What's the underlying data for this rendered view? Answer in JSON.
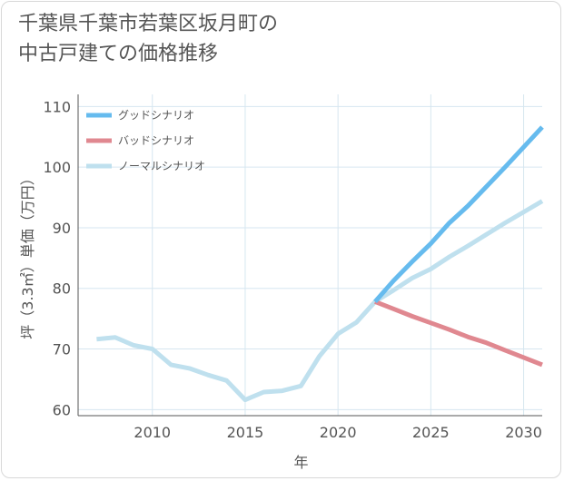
{
  "chart_data": {
    "type": "line",
    "title_line1": "千葉県千葉市若葉区坂月町の",
    "title_line2": "中古戸建ての価格推移",
    "xlabel": "年",
    "ylabel": "坪（3.3㎡）単価（万円）",
    "xlim": [
      2006,
      2031
    ],
    "ylim": [
      59,
      112
    ],
    "x_ticks": [
      2010,
      2015,
      2020,
      2025,
      2030
    ],
    "y_ticks": [
      60,
      70,
      80,
      90,
      100,
      110
    ],
    "grid": true,
    "legend_position": "top-left",
    "colors": {
      "good": "#66bbee",
      "bad": "#e08890",
      "normal": "#bfe0ee",
      "grid": "#d6e6f0",
      "axis": "#555555"
    },
    "series": [
      {
        "key": "good",
        "name": "グッドシナリオ",
        "x": [
          2022,
          2023,
          2024,
          2025,
          2026,
          2027,
          2028,
          2029,
          2030,
          2031
        ],
        "values": [
          77.8,
          81.3,
          84.4,
          87.4,
          90.8,
          93.6,
          96.8,
          100.0,
          103.3,
          106.6
        ]
      },
      {
        "key": "bad",
        "name": "バッドシナリオ",
        "x": [
          2022,
          2023,
          2024,
          2025,
          2026,
          2027,
          2028,
          2029,
          2030,
          2031
        ],
        "values": [
          77.8,
          76.6,
          75.4,
          74.3,
          73.2,
          72.0,
          71.0,
          69.8,
          68.6,
          67.4
        ]
      },
      {
        "key": "normal",
        "name": "ノーマルシナリオ",
        "x": [
          2007,
          2008,
          2009,
          2010,
          2011,
          2012,
          2013,
          2014,
          2015,
          2016,
          2017,
          2018,
          2019,
          2020,
          2021,
          2022,
          2023,
          2024,
          2025,
          2026,
          2027,
          2028,
          2029,
          2030,
          2031
        ],
        "values": [
          71.6,
          71.9,
          70.6,
          70.0,
          67.4,
          66.8,
          65.7,
          64.8,
          61.6,
          62.9,
          63.1,
          63.9,
          68.8,
          72.5,
          74.4,
          77.8,
          79.7,
          81.7,
          83.2,
          85.2,
          87.0,
          88.9,
          90.8,
          92.6,
          94.4
        ]
      }
    ]
  }
}
